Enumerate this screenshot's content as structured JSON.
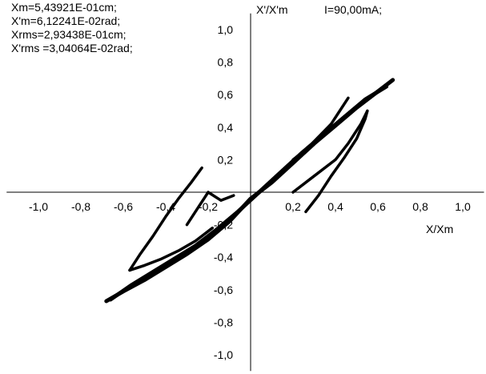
{
  "info_lines": [
    "Xm=5,43921E-01cm;",
    "X'm=6,12241E-02rad;",
    "Xrms=2,93438E-01cm;",
    "X'rms =3,04064E-02rad;"
  ],
  "current_label": "I=90,00mA;",
  "chart_data": {
    "type": "scatter",
    "title": "",
    "xlabel": "X/Xm",
    "ylabel": "X'/X'm",
    "xlim": [
      -1.15,
      1.1
    ],
    "ylim": [
      -1.1,
      1.1
    ],
    "x_ticks": [
      "-1,0",
      "-0,8",
      "-0,6",
      "-0,4",
      "-0,2",
      "0,2",
      "0,4",
      "0,6",
      "0,8",
      "1,0"
    ],
    "x_tick_values": [
      -1.0,
      -0.8,
      -0.6,
      -0.4,
      -0.2,
      0.2,
      0.4,
      0.6,
      0.8,
      1.0
    ],
    "y_ticks": [
      "1,0",
      "0,8",
      "0,6",
      "0,4",
      "0,2",
      "-0,2",
      "-0,4",
      "-0,6",
      "-0,8",
      "-1,0"
    ],
    "y_tick_values": [
      1.0,
      0.8,
      0.6,
      0.4,
      0.2,
      -0.2,
      -0.4,
      -0.6,
      -0.8,
      -1.0
    ],
    "grid": false,
    "color": "#000000",
    "series": [
      {
        "values": [
          [
            -0.68,
            -0.67
          ],
          [
            -0.6,
            -0.61
          ],
          [
            -0.5,
            -0.54
          ],
          [
            -0.4,
            -0.46
          ],
          [
            -0.3,
            -0.38
          ],
          [
            -0.2,
            -0.29
          ],
          [
            -0.1,
            -0.18
          ],
          [
            0.0,
            -0.04
          ],
          [
            0.1,
            0.06
          ],
          [
            0.2,
            0.18
          ],
          [
            0.3,
            0.3
          ],
          [
            0.4,
            0.41
          ],
          [
            0.5,
            0.52
          ],
          [
            0.6,
            0.62
          ],
          [
            0.67,
            0.69
          ]
        ]
      },
      {
        "values": [
          [
            -0.66,
            -0.66
          ],
          [
            -0.56,
            -0.57
          ],
          [
            -0.46,
            -0.49
          ],
          [
            -0.36,
            -0.41
          ],
          [
            -0.26,
            -0.33
          ],
          [
            -0.16,
            -0.23
          ],
          [
            -0.06,
            -0.12
          ],
          [
            0.04,
            0.0
          ],
          [
            0.14,
            0.12
          ],
          [
            0.24,
            0.24
          ],
          [
            0.34,
            0.35
          ],
          [
            0.44,
            0.46
          ],
          [
            0.54,
            0.57
          ],
          [
            0.64,
            0.65
          ]
        ]
      },
      {
        "values": [
          [
            -0.57,
            -0.48
          ],
          [
            -0.52,
            -0.38
          ],
          [
            -0.46,
            -0.27
          ],
          [
            -0.4,
            -0.15
          ],
          [
            -0.34,
            -0.04
          ],
          [
            -0.28,
            0.06
          ],
          [
            -0.23,
            0.15
          ]
        ]
      },
      {
        "values": [
          [
            -0.57,
            -0.48
          ],
          [
            -0.5,
            -0.45
          ],
          [
            -0.42,
            -0.41
          ],
          [
            -0.34,
            -0.36
          ],
          [
            -0.26,
            -0.3
          ],
          [
            -0.18,
            -0.22
          ]
        ]
      },
      {
        "values": [
          [
            0.26,
            -0.12
          ],
          [
            0.32,
            -0.02
          ],
          [
            0.38,
            0.1
          ],
          [
            0.44,
            0.21
          ],
          [
            0.5,
            0.33
          ],
          [
            0.54,
            0.45
          ],
          [
            0.55,
            0.5
          ]
        ]
      },
      {
        "values": [
          [
            0.2,
            0.0
          ],
          [
            0.3,
            0.1
          ],
          [
            0.4,
            0.2
          ],
          [
            0.46,
            0.3
          ],
          [
            0.52,
            0.42
          ],
          [
            0.55,
            0.5
          ]
        ]
      },
      {
        "values": [
          [
            0.2,
            0.2
          ],
          [
            0.26,
            0.26
          ],
          [
            0.32,
            0.34
          ],
          [
            0.38,
            0.42
          ],
          [
            0.42,
            0.5
          ],
          [
            0.46,
            0.58
          ]
        ]
      },
      {
        "values": [
          [
            -0.3,
            -0.2
          ],
          [
            -0.24,
            -0.08
          ],
          [
            -0.2,
            0.0
          ],
          [
            -0.14,
            -0.05
          ],
          [
            -0.08,
            -0.02
          ]
        ]
      }
    ]
  }
}
